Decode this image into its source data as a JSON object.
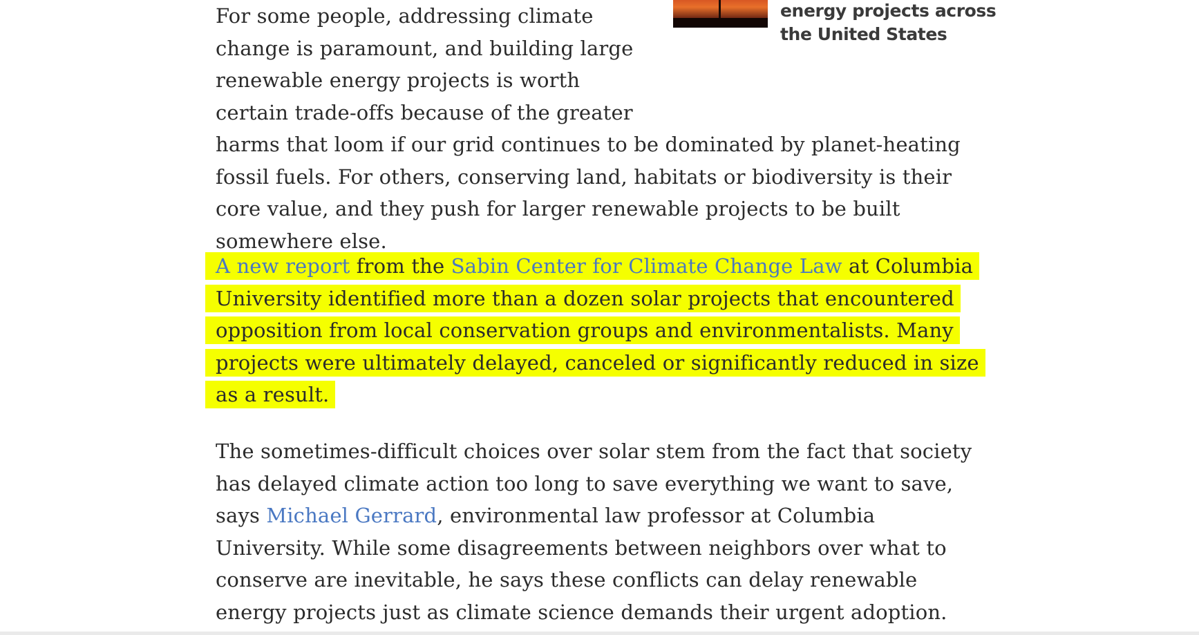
{
  "related": {
    "title": "derailing renewable energy projects across the United States"
  },
  "paragraphs": {
    "p1": "For some people, addressing climate change is paramount, and building large renewable energy projects is worth certain trade-offs because of the greater harms that loom if our grid continues to be dominated by planet-heating fossil fuels. For others, conserving land, habitats or biodiversity is their core value, and they push for larger renewable projects to be built somewhere else.",
    "p2": {
      "link1": "A new report",
      "text1": " from the ",
      "link2": "Sabin Center for Climate Change Law",
      "text2": " at Columbia University identified more than a dozen solar projects that encountered opposition from local conservation groups and environmentalists. Many projects were ultimately delayed, canceled or significantly reduced in size as a result."
    },
    "p3": {
      "text1": "The sometimes-difficult choices over solar stem from the fact that society has delayed climate action too long to save everything we want to save, says ",
      "link1": "Michael Gerrard",
      "text2": ", environmental law professor at Columbia University. While some disagreements between neighbors over what to conserve are inevitable, he says these conflicts can delay renewable energy projects just as climate science demands their urgent adoption."
    }
  },
  "colors": {
    "highlight": "#f5ff00",
    "link": "#4a78c2",
    "text": "#2b2b2b"
  }
}
